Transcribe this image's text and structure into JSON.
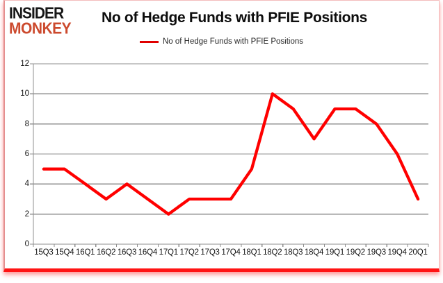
{
  "logo": {
    "line1": "INSIDER",
    "line2": "MONKEY"
  },
  "header": {
    "title": "No of Hedge Funds with PFIE Positions"
  },
  "legend": {
    "label": "No of Hedge Funds with PFIE Positions"
  },
  "chart_data": {
    "type": "line",
    "title": "No of Hedge Funds with PFIE Positions",
    "categories": [
      "15Q3",
      "15Q4",
      "16Q1",
      "16Q2",
      "16Q3",
      "16Q4",
      "17Q1",
      "17Q2",
      "17Q3",
      "17Q4",
      "18Q1",
      "18Q2",
      "18Q3",
      "18Q4",
      "19Q1",
      "19Q2",
      "19Q3",
      "19Q4",
      "20Q1"
    ],
    "series": [
      {
        "name": "No of Hedge Funds with PFIE Positions",
        "values": [
          5,
          5,
          4,
          3,
          4,
          3,
          2,
          3,
          3,
          3,
          5,
          10,
          9,
          7,
          9,
          9,
          8,
          6,
          3
        ]
      }
    ],
    "xlabel": "",
    "ylabel": "",
    "ylim": [
      0,
      12
    ],
    "yticks": [
      0,
      2,
      4,
      6,
      8,
      10,
      12
    ],
    "grid": true,
    "legend_position": "top-center"
  },
  "colors": {
    "series_line": "#ff0000",
    "legend_swatch": "#e00000",
    "gridline": "#8f8f8f",
    "axis": "#8f8f8f",
    "logo_red": "#cc4a2e",
    "frame_bottom_red": "#ff1414",
    "tick_text": "#141414"
  }
}
